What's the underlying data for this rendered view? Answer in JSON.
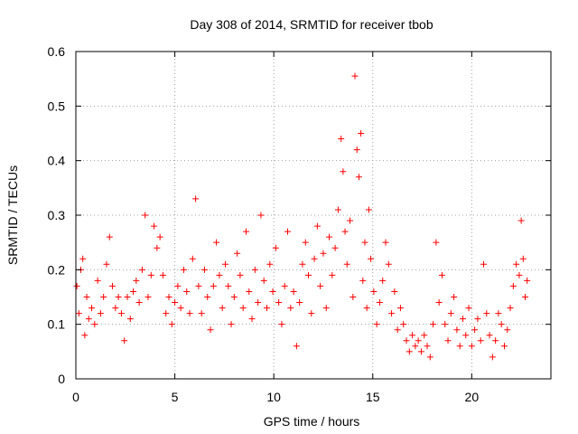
{
  "chart_data": {
    "type": "scatter",
    "title": "Day 308 of 2014, SRMTID for receiver tbob",
    "xlabel": "GPS time / hours",
    "ylabel": "SRMTID / TECUs",
    "xlim": [
      0,
      24
    ],
    "ylim": [
      0,
      0.6
    ],
    "xticks": [
      0,
      5,
      10,
      15,
      20
    ],
    "xtick_labels": [
      "0",
      "5",
      "10",
      "15",
      "20"
    ],
    "yticks": [
      0,
      0.1,
      0.2,
      0.3,
      0.4,
      0.5,
      0.6
    ],
    "ytick_labels": [
      "0",
      "0.1",
      "0.2",
      "0.3",
      "0.4",
      "0.5",
      "0.6"
    ],
    "grid": true,
    "marker": "plus",
    "color": "#ff0000",
    "series": [
      {
        "name": "tbob",
        "points": [
          [
            0.05,
            0.17
          ],
          [
            0.15,
            0.12
          ],
          [
            0.25,
            0.2
          ],
          [
            0.35,
            0.22
          ],
          [
            0.45,
            0.08
          ],
          [
            0.55,
            0.15
          ],
          [
            0.65,
            0.11
          ],
          [
            0.8,
            0.13
          ],
          [
            0.95,
            0.1
          ],
          [
            1.1,
            0.18
          ],
          [
            1.25,
            0.12
          ],
          [
            1.4,
            0.15
          ],
          [
            1.55,
            0.21
          ],
          [
            1.7,
            0.26
          ],
          [
            1.85,
            0.17
          ],
          [
            2.0,
            0.13
          ],
          [
            2.15,
            0.15
          ],
          [
            2.3,
            0.12
          ],
          [
            2.45,
            0.07
          ],
          [
            2.6,
            0.15
          ],
          [
            2.75,
            0.11
          ],
          [
            2.9,
            0.16
          ],
          [
            3.05,
            0.18
          ],
          [
            3.2,
            0.14
          ],
          [
            3.35,
            0.2
          ],
          [
            3.5,
            0.3
          ],
          [
            3.65,
            0.15
          ],
          [
            3.8,
            0.19
          ],
          [
            3.95,
            0.28
          ],
          [
            4.1,
            0.24
          ],
          [
            4.25,
            0.26
          ],
          [
            4.4,
            0.19
          ],
          [
            4.55,
            0.12
          ],
          [
            4.7,
            0.15
          ],
          [
            4.85,
            0.1
          ],
          [
            5.0,
            0.14
          ],
          [
            5.15,
            0.17
          ],
          [
            5.3,
            0.13
          ],
          [
            5.45,
            0.2
          ],
          [
            5.6,
            0.16
          ],
          [
            5.75,
            0.12
          ],
          [
            5.9,
            0.22
          ],
          [
            6.05,
            0.33
          ],
          [
            6.2,
            0.17
          ],
          [
            6.35,
            0.12
          ],
          [
            6.5,
            0.2
          ],
          [
            6.65,
            0.15
          ],
          [
            6.8,
            0.09
          ],
          [
            6.95,
            0.17
          ],
          [
            7.1,
            0.25
          ],
          [
            7.25,
            0.19
          ],
          [
            7.4,
            0.13
          ],
          [
            7.55,
            0.21
          ],
          [
            7.7,
            0.17
          ],
          [
            7.85,
            0.1
          ],
          [
            8.0,
            0.15
          ],
          [
            8.15,
            0.23
          ],
          [
            8.3,
            0.19
          ],
          [
            8.45,
            0.13
          ],
          [
            8.6,
            0.27
          ],
          [
            8.75,
            0.16
          ],
          [
            8.9,
            0.11
          ],
          [
            9.05,
            0.2
          ],
          [
            9.2,
            0.14
          ],
          [
            9.35,
            0.3
          ],
          [
            9.5,
            0.18
          ],
          [
            9.65,
            0.13
          ],
          [
            9.8,
            0.21
          ],
          [
            9.95,
            0.16
          ],
          [
            10.1,
            0.24
          ],
          [
            10.25,
            0.14
          ],
          [
            10.4,
            0.1
          ],
          [
            10.55,
            0.17
          ],
          [
            10.7,
            0.27
          ],
          [
            10.85,
            0.13
          ],
          [
            11.0,
            0.16
          ],
          [
            11.15,
            0.06
          ],
          [
            11.3,
            0.14
          ],
          [
            11.45,
            0.21
          ],
          [
            11.6,
            0.25
          ],
          [
            11.75,
            0.19
          ],
          [
            11.9,
            0.12
          ],
          [
            12.05,
            0.22
          ],
          [
            12.2,
            0.28
          ],
          [
            12.35,
            0.17
          ],
          [
            12.5,
            0.23
          ],
          [
            12.65,
            0.13
          ],
          [
            12.8,
            0.26
          ],
          [
            12.95,
            0.19
          ],
          [
            13.1,
            0.24
          ],
          [
            13.25,
            0.31
          ],
          [
            13.4,
            0.44
          ],
          [
            13.5,
            0.38
          ],
          [
            13.6,
            0.27
          ],
          [
            13.7,
            0.21
          ],
          [
            13.85,
            0.29
          ],
          [
            14.0,
            0.15
          ],
          [
            14.1,
            0.555
          ],
          [
            14.2,
            0.42
          ],
          [
            14.3,
            0.37
          ],
          [
            14.4,
            0.45
          ],
          [
            14.5,
            0.18
          ],
          [
            14.6,
            0.25
          ],
          [
            14.7,
            0.13
          ],
          [
            14.8,
            0.31
          ],
          [
            14.9,
            0.22
          ],
          [
            15.05,
            0.16
          ],
          [
            15.2,
            0.1
          ],
          [
            15.35,
            0.14
          ],
          [
            15.5,
            0.18
          ],
          [
            15.65,
            0.25
          ],
          [
            15.8,
            0.21
          ],
          [
            15.95,
            0.12
          ],
          [
            16.1,
            0.16
          ],
          [
            16.25,
            0.09
          ],
          [
            16.4,
            0.13
          ],
          [
            16.55,
            0.1
          ],
          [
            16.7,
            0.07
          ],
          [
            16.85,
            0.05
          ],
          [
            17.0,
            0.08
          ],
          [
            17.15,
            0.06
          ],
          [
            17.3,
            0.07
          ],
          [
            17.45,
            0.05
          ],
          [
            17.6,
            0.08
          ],
          [
            17.75,
            0.06
          ],
          [
            17.9,
            0.04
          ],
          [
            18.05,
            0.1
          ],
          [
            18.2,
            0.25
          ],
          [
            18.35,
            0.14
          ],
          [
            18.5,
            0.19
          ],
          [
            18.65,
            0.1
          ],
          [
            18.8,
            0.07
          ],
          [
            18.95,
            0.12
          ],
          [
            19.1,
            0.15
          ],
          [
            19.25,
            0.09
          ],
          [
            19.4,
            0.06
          ],
          [
            19.55,
            0.11
          ],
          [
            19.7,
            0.08
          ],
          [
            19.85,
            0.13
          ],
          [
            20.0,
            0.06
          ],
          [
            20.15,
            0.09
          ],
          [
            20.3,
            0.11
          ],
          [
            20.45,
            0.07
          ],
          [
            20.6,
            0.21
          ],
          [
            20.75,
            0.12
          ],
          [
            20.9,
            0.08
          ],
          [
            21.05,
            0.04
          ],
          [
            21.2,
            0.07
          ],
          [
            21.35,
            0.12
          ],
          [
            21.5,
            0.1
          ],
          [
            21.65,
            0.06
          ],
          [
            21.8,
            0.09
          ],
          [
            21.95,
            0.13
          ],
          [
            22.1,
            0.17
          ],
          [
            22.25,
            0.21
          ],
          [
            22.4,
            0.19
          ],
          [
            22.5,
            0.29
          ],
          [
            22.6,
            0.22
          ],
          [
            22.7,
            0.15
          ],
          [
            22.8,
            0.18
          ]
        ]
      }
    ]
  }
}
